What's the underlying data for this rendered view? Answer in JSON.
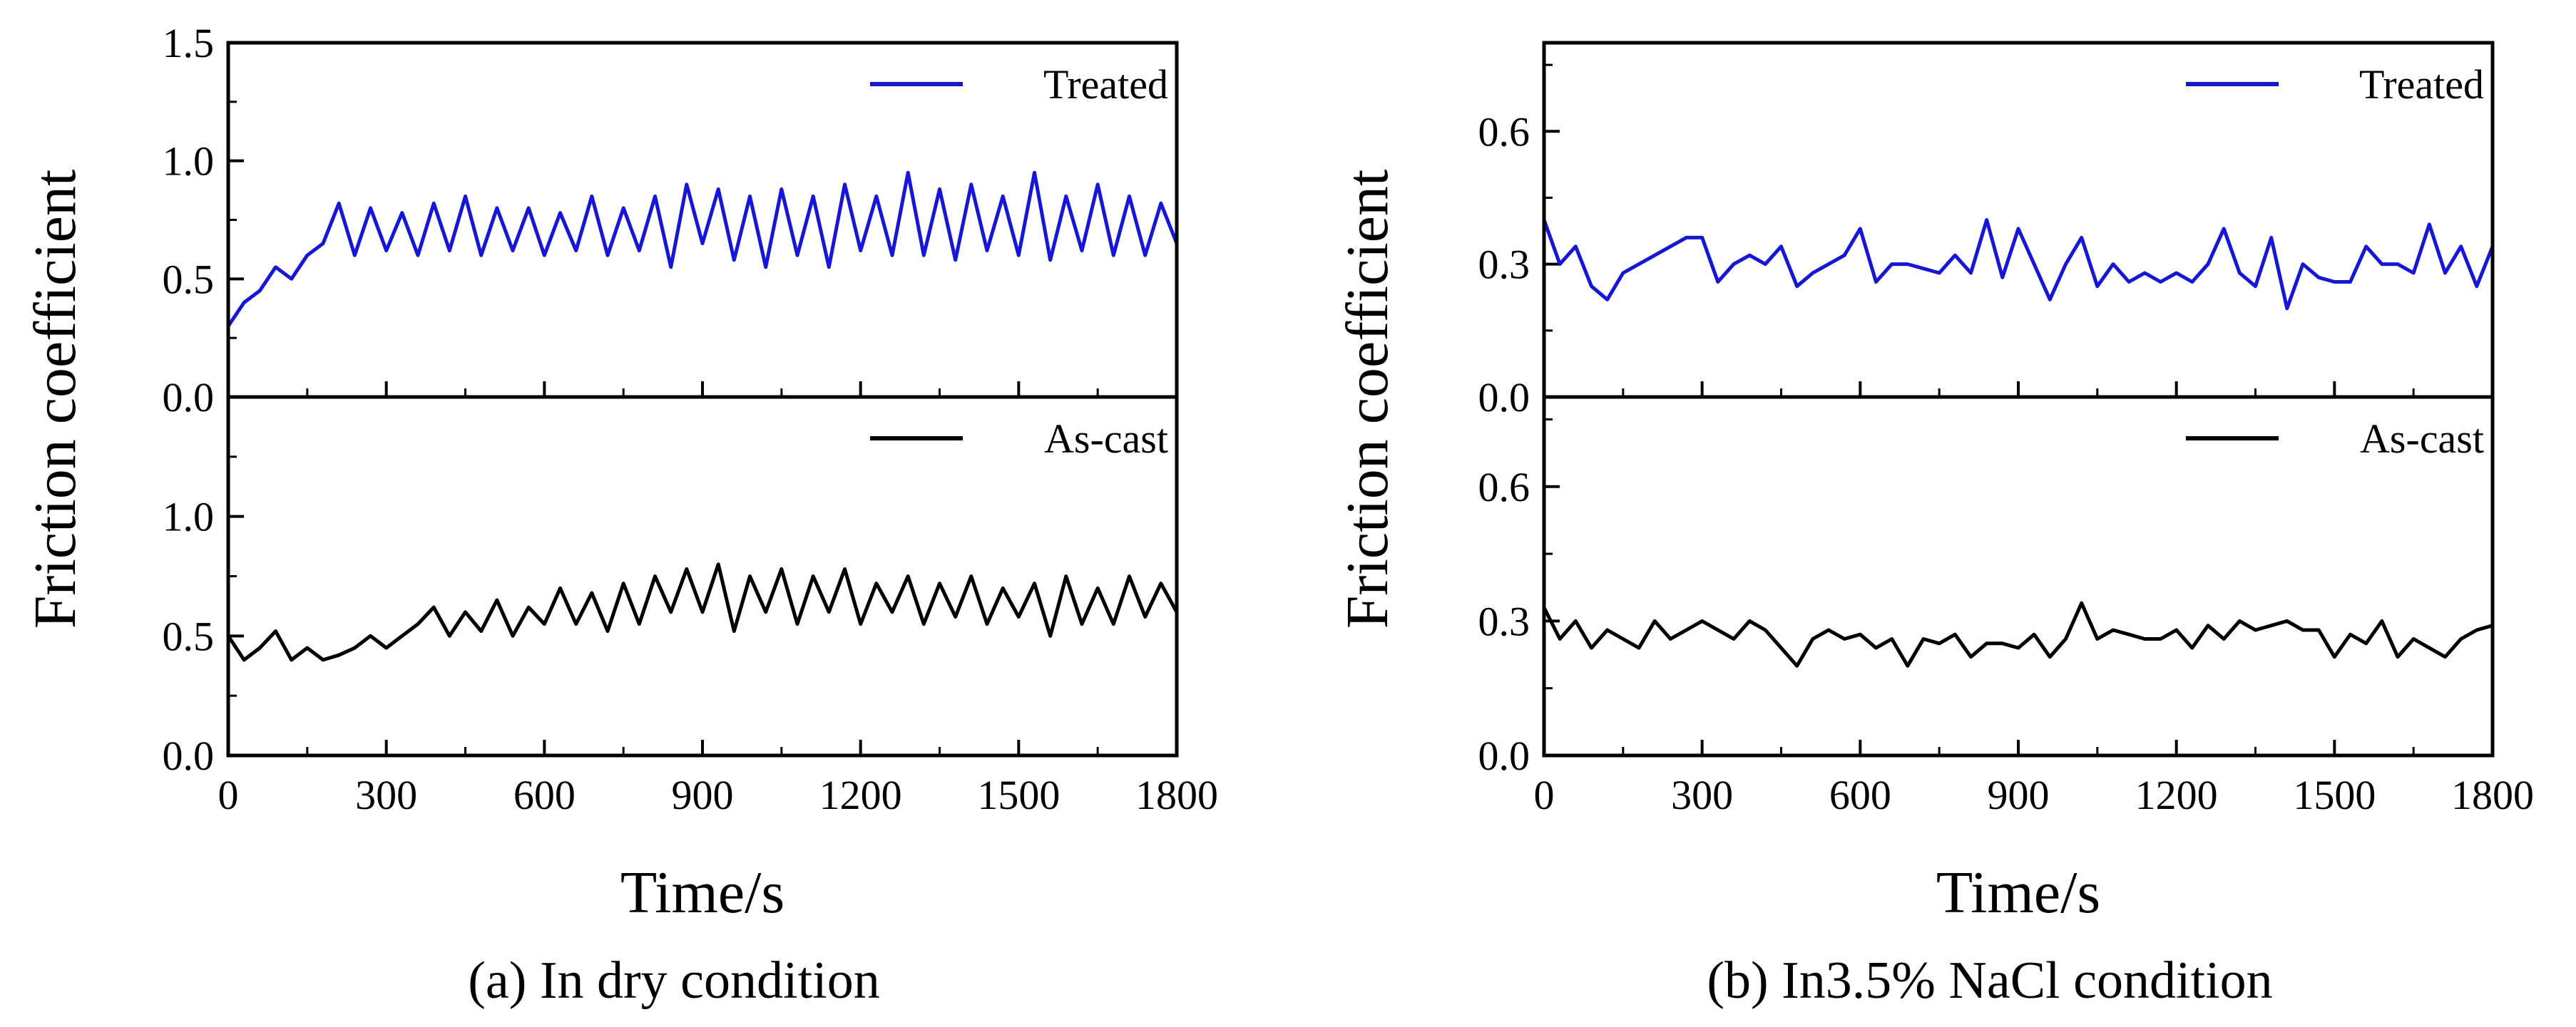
{
  "chart_data": [
    {
      "type": "line",
      "caption": "(a) In dry condition",
      "xlabel": "Time/s",
      "ylabel": "Friction coefficient",
      "xlim": [
        0,
        1800
      ],
      "xticks": [
        "0",
        "300",
        "600",
        "900",
        "1200",
        "1500",
        "1800"
      ],
      "panels": [
        {
          "position": "top",
          "ylim": [
            0,
            1.5
          ],
          "yticks": [
            "0.0",
            "0.5",
            "1.0",
            "1.5"
          ],
          "legend": "top-right",
          "series": [
            {
              "name": "Treated",
              "color": "#1414e6",
              "x": [
                0,
                30,
                60,
                90,
                120,
                150,
                180,
                210,
                240,
                270,
                300,
                330,
                360,
                390,
                420,
                450,
                480,
                510,
                540,
                570,
                600,
                630,
                660,
                690,
                720,
                750,
                780,
                810,
                840,
                870,
                900,
                930,
                960,
                990,
                1020,
                1050,
                1080,
                1110,
                1140,
                1170,
                1200,
                1230,
                1260,
                1290,
                1320,
                1350,
                1380,
                1410,
                1440,
                1470,
                1500,
                1530,
                1560,
                1590,
                1620,
                1650,
                1680,
                1710,
                1740,
                1770,
                1800
              ],
              "y": [
                0.3,
                0.4,
                0.45,
                0.55,
                0.5,
                0.6,
                0.65,
                0.82,
                0.6,
                0.8,
                0.62,
                0.78,
                0.6,
                0.82,
                0.62,
                0.85,
                0.6,
                0.8,
                0.62,
                0.8,
                0.6,
                0.78,
                0.62,
                0.85,
                0.6,
                0.8,
                0.62,
                0.85,
                0.55,
                0.9,
                0.65,
                0.88,
                0.58,
                0.85,
                0.55,
                0.88,
                0.6,
                0.85,
                0.55,
                0.9,
                0.62,
                0.85,
                0.6,
                0.95,
                0.6,
                0.88,
                0.58,
                0.9,
                0.62,
                0.85,
                0.6,
                0.95,
                0.58,
                0.85,
                0.62,
                0.9,
                0.6,
                0.85,
                0.6,
                0.82,
                0.65
              ]
            }
          ]
        },
        {
          "position": "bottom",
          "ylim": [
            0,
            1.5
          ],
          "yticks": [
            "0.0",
            "0.5",
            "1.0",
            ""
          ],
          "legend": "top-right",
          "series": [
            {
              "name": "As-cast",
              "color": "#000000",
              "x": [
                0,
                30,
                60,
                90,
                120,
                150,
                180,
                210,
                240,
                270,
                300,
                330,
                360,
                390,
                420,
                450,
                480,
                510,
                540,
                570,
                600,
                630,
                660,
                690,
                720,
                750,
                780,
                810,
                840,
                870,
                900,
                930,
                960,
                990,
                1020,
                1050,
                1080,
                1110,
                1140,
                1170,
                1200,
                1230,
                1260,
                1290,
                1320,
                1350,
                1380,
                1410,
                1440,
                1470,
                1500,
                1530,
                1560,
                1590,
                1620,
                1650,
                1680,
                1710,
                1740,
                1770,
                1800
              ],
              "y": [
                0.5,
                0.4,
                0.45,
                0.52,
                0.4,
                0.45,
                0.4,
                0.42,
                0.45,
                0.5,
                0.45,
                0.5,
                0.55,
                0.62,
                0.5,
                0.6,
                0.52,
                0.65,
                0.5,
                0.62,
                0.55,
                0.7,
                0.55,
                0.68,
                0.52,
                0.72,
                0.55,
                0.75,
                0.6,
                0.78,
                0.6,
                0.8,
                0.52,
                0.75,
                0.6,
                0.78,
                0.55,
                0.75,
                0.6,
                0.78,
                0.55,
                0.72,
                0.6,
                0.75,
                0.55,
                0.72,
                0.58,
                0.75,
                0.55,
                0.7,
                0.58,
                0.72,
                0.5,
                0.75,
                0.55,
                0.7,
                0.55,
                0.75,
                0.58,
                0.72,
                0.6
              ]
            }
          ]
        }
      ]
    },
    {
      "type": "line",
      "caption": "(b) In3.5% NaCl condition",
      "xlabel": "Time/s",
      "ylabel": "Friction coefficient",
      "xlim": [
        0,
        1800
      ],
      "xticks": [
        "0",
        "300",
        "600",
        "900",
        "1200",
        "1500",
        "1800"
      ],
      "panels": [
        {
          "position": "top",
          "ylim": [
            0,
            0.8
          ],
          "yticks": [
            "0.0",
            "0.3",
            "0.6"
          ],
          "legend": "top-right",
          "series": [
            {
              "name": "Treated",
              "color": "#1414e6",
              "x": [
                0,
                30,
                60,
                90,
                120,
                150,
                180,
                210,
                240,
                270,
                300,
                330,
                360,
                390,
                420,
                450,
                480,
                510,
                540,
                570,
                600,
                630,
                660,
                690,
                720,
                750,
                780,
                810,
                840,
                870,
                900,
                930,
                960,
                990,
                1020,
                1050,
                1080,
                1110,
                1140,
                1170,
                1200,
                1230,
                1260,
                1290,
                1320,
                1350,
                1380,
                1410,
                1440,
                1470,
                1500,
                1530,
                1560,
                1590,
                1620,
                1650,
                1680,
                1710,
                1740,
                1770,
                1800
              ],
              "y": [
                0.4,
                0.3,
                0.34,
                0.25,
                0.22,
                0.28,
                0.3,
                0.32,
                0.34,
                0.36,
                0.36,
                0.26,
                0.3,
                0.32,
                0.3,
                0.34,
                0.25,
                0.28,
                0.3,
                0.32,
                0.38,
                0.26,
                0.3,
                0.3,
                0.29,
                0.28,
                0.32,
                0.28,
                0.4,
                0.27,
                0.38,
                0.3,
                0.22,
                0.3,
                0.36,
                0.25,
                0.3,
                0.26,
                0.28,
                0.26,
                0.28,
                0.26,
                0.3,
                0.38,
                0.28,
                0.25,
                0.36,
                0.2,
                0.3,
                0.27,
                0.26,
                0.26,
                0.34,
                0.3,
                0.3,
                0.28,
                0.39,
                0.28,
                0.34,
                0.25,
                0.34
              ]
            }
          ]
        },
        {
          "position": "bottom",
          "ylim": [
            0,
            0.8
          ],
          "yticks": [
            "0.0",
            "0.3",
            "0.6"
          ],
          "legend": "top-right",
          "series": [
            {
              "name": "As-cast",
              "color": "#000000",
              "x": [
                0,
                30,
                60,
                90,
                120,
                150,
                180,
                210,
                240,
                270,
                300,
                330,
                360,
                390,
                420,
                450,
                480,
                510,
                540,
                570,
                600,
                630,
                660,
                690,
                720,
                750,
                780,
                810,
                840,
                870,
                900,
                930,
                960,
                990,
                1020,
                1050,
                1080,
                1110,
                1140,
                1170,
                1200,
                1230,
                1260,
                1290,
                1320,
                1350,
                1380,
                1410,
                1440,
                1470,
                1500,
                1530,
                1560,
                1590,
                1620,
                1650,
                1680,
                1710,
                1740,
                1770,
                1800
              ],
              "y": [
                0.33,
                0.26,
                0.3,
                0.24,
                0.28,
                0.26,
                0.24,
                0.3,
                0.26,
                0.28,
                0.3,
                0.28,
                0.26,
                0.3,
                0.28,
                0.24,
                0.2,
                0.26,
                0.28,
                0.26,
                0.27,
                0.24,
                0.26,
                0.2,
                0.26,
                0.25,
                0.27,
                0.22,
                0.25,
                0.25,
                0.24,
                0.27,
                0.22,
                0.26,
                0.34,
                0.26,
                0.28,
                0.27,
                0.26,
                0.26,
                0.28,
                0.24,
                0.29,
                0.26,
                0.3,
                0.28,
                0.29,
                0.3,
                0.28,
                0.28,
                0.22,
                0.27,
                0.25,
                0.3,
                0.22,
                0.26,
                0.24,
                0.22,
                0.26,
                0.28,
                0.29
              ]
            }
          ]
        }
      ]
    }
  ]
}
